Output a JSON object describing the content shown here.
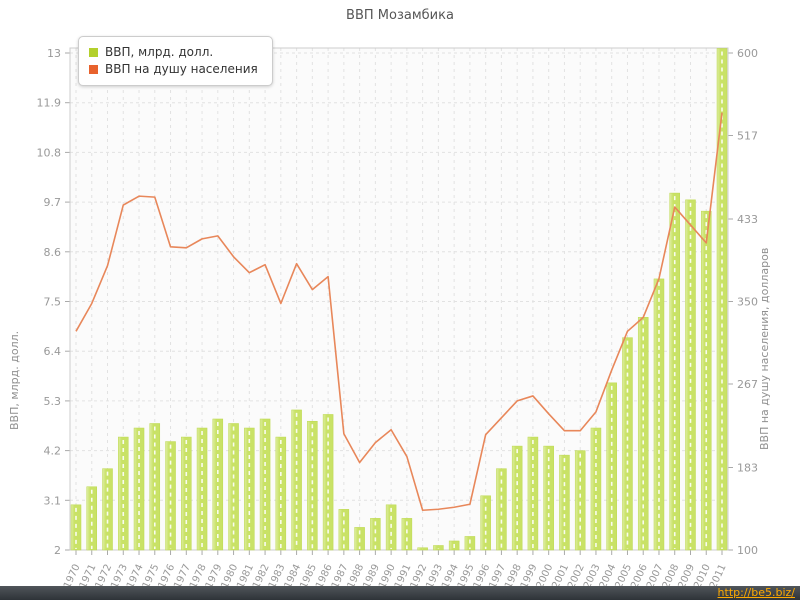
{
  "chart_data": {
    "type": "combo",
    "title": "ВВП Мозамбика",
    "categories": [
      "1970",
      "1971",
      "1972",
      "1973",
      "1974",
      "1975",
      "1976",
      "1977",
      "1978",
      "1979",
      "1980",
      "1981",
      "1982",
      "1983",
      "1984",
      "1985",
      "1986",
      "1987",
      "1988",
      "1989",
      "1990",
      "1991",
      "1992",
      "1993",
      "1994",
      "1995",
      "1996",
      "1997",
      "1998",
      "1999",
      "2000",
      "2001",
      "2002",
      "2003",
      "2004",
      "2005",
      "2006",
      "2007",
      "2008",
      "2009",
      "2010",
      "2011"
    ],
    "series": [
      {
        "name": "ВВП, млрд. долл.",
        "type": "bar",
        "axis": "left",
        "color": "#c9e266",
        "values": [
          3.0,
          3.4,
          3.8,
          4.5,
          4.7,
          4.8,
          4.4,
          4.5,
          4.7,
          4.9,
          4.8,
          4.7,
          4.9,
          4.5,
          5.1,
          4.85,
          5.0,
          2.9,
          2.5,
          2.7,
          3.0,
          2.7,
          2.05,
          2.1,
          2.2,
          2.3,
          3.2,
          3.8,
          4.3,
          4.5,
          4.3,
          4.1,
          4.2,
          4.7,
          5.7,
          6.7,
          7.15,
          8.0,
          9.9,
          9.75,
          9.5,
          13.1
        ]
      },
      {
        "name": "ВВП на душу населения",
        "type": "line",
        "axis": "right",
        "color": "#e8875a",
        "values": [
          320,
          348,
          386,
          447,
          456,
          455,
          405,
          404,
          413,
          416,
          395,
          379,
          387,
          348,
          388,
          362,
          375,
          217,
          188,
          208,
          221,
          194,
          140,
          141,
          143,
          146,
          216,
          233,
          250,
          255,
          237,
          220,
          220,
          239,
          281,
          320,
          334,
          373,
          445,
          427,
          409,
          540
        ]
      }
    ],
    "left_axis": {
      "label": "ВВП, млрд. долл.",
      "range": [
        2,
        13
      ],
      "ticks": [
        2,
        3.1,
        4.2,
        5.3,
        6.4,
        7.5,
        8.6,
        9.7,
        10.8,
        11.9,
        13
      ]
    },
    "right_axis": {
      "label": "ВВП на душу населения, долларов",
      "range": [
        100,
        600
      ],
      "ticks": [
        100,
        183,
        267,
        350,
        433,
        517,
        600
      ]
    },
    "grid": "dashed-both-directions",
    "legend_position": "top-left"
  },
  "colors": {
    "bar_fill": "#c9e266",
    "bar_fill_light": "#ddeda0",
    "bar_stripe": "#ffffff",
    "line": "#e8875a",
    "legend_bar_swatch": "#b3d02c",
    "legend_line_swatch": "#e8622d",
    "grid": "#e2e2e2",
    "frame": "#cccccc",
    "tick_text": "#999999",
    "title_text": "#555555",
    "plot_bg": "#fbfbfb",
    "footer_bg": "#2e3338",
    "footer_link": "#ffaa00"
  },
  "footer": {
    "url": "http://be5.biz/"
  }
}
